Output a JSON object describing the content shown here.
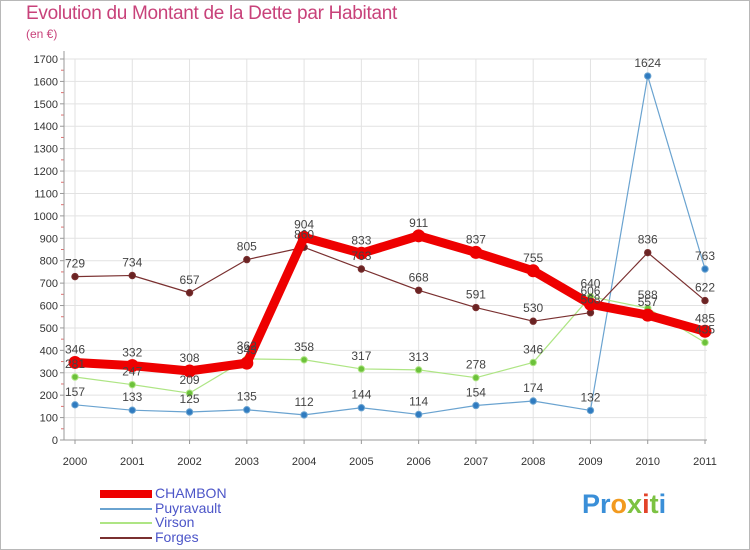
{
  "title": "Evolution du Montant de la Dette par Habitant",
  "subtitle": "(en €)",
  "brand": {
    "letters": [
      {
        "ch": "P",
        "color": "#3a8fd8"
      },
      {
        "ch": "r",
        "color": "#3a8fd8"
      },
      {
        "ch": "o",
        "color": "#f29a1f"
      },
      {
        "ch": "x",
        "color": "#7cc242"
      },
      {
        "ch": "i",
        "color": "#e2432a"
      },
      {
        "ch": "t",
        "color": "#7cc242"
      },
      {
        "ch": "i",
        "color": "#3a8fd8"
      }
    ]
  },
  "chart_data": {
    "type": "line",
    "title": "Evolution du Montant de la Dette par Habitant",
    "ylabel": "(en €)",
    "xlabel": "",
    "x": [
      "2000",
      "2001",
      "2002",
      "2003",
      "2004",
      "2005",
      "2006",
      "2007",
      "2008",
      "2009",
      "2010",
      "2011"
    ],
    "ylim": [
      0,
      1700
    ],
    "yticks": [
      "0",
      "100",
      "200",
      "300",
      "400",
      "500",
      "600",
      "700",
      "800",
      "900",
      "1000",
      "1100",
      "1200",
      "1300",
      "1400",
      "1500",
      "1600",
      "1700"
    ],
    "grid": true,
    "legend_position": "bottom-left",
    "series": [
      {
        "name": "CHAMBON",
        "color": "#ee0000",
        "width": 9,
        "values": [
          346,
          332,
          308,
          343,
          904,
          833,
          911,
          837,
          755,
          606,
          557,
          485
        ],
        "labels": [
          "346",
          "332",
          "308",
          "343",
          "904",
          "833",
          "911",
          "837",
          "755",
          "606",
          "557",
          "485"
        ]
      },
      {
        "name": "Puyravault",
        "color": "#6aa3d0",
        "marker": "#2f7bc0",
        "width": 1.2,
        "values": [
          157,
          133,
          125,
          135,
          112,
          144,
          114,
          154,
          174,
          132,
          1624,
          763
        ],
        "labels": [
          "157",
          "133",
          "125",
          "135",
          "112",
          "144",
          "114",
          "154",
          "174",
          "132",
          "1624",
          "763"
        ]
      },
      {
        "name": "Virson",
        "color": "#aee584",
        "marker": "#6cc13a",
        "width": 1.2,
        "values": [
          281,
          247,
          209,
          362,
          358,
          317,
          313,
          278,
          346,
          640,
          588,
          435
        ],
        "labels": [
          "281",
          "247",
          "209",
          "362",
          "358",
          "317",
          "313",
          "278",
          "346",
          "640",
          "588",
          "435"
        ]
      },
      {
        "name": "Forges",
        "color": "#7a3030",
        "marker": "#6a2323",
        "width": 1.2,
        "values": [
          729,
          734,
          657,
          805,
          860,
          763,
          668,
          591,
          530,
          568,
          836,
          622
        ],
        "labels": [
          "729",
          "734",
          "657",
          "805",
          "860",
          "763",
          "668",
          "591",
          "530",
          "568",
          "836",
          "622"
        ]
      }
    ]
  }
}
